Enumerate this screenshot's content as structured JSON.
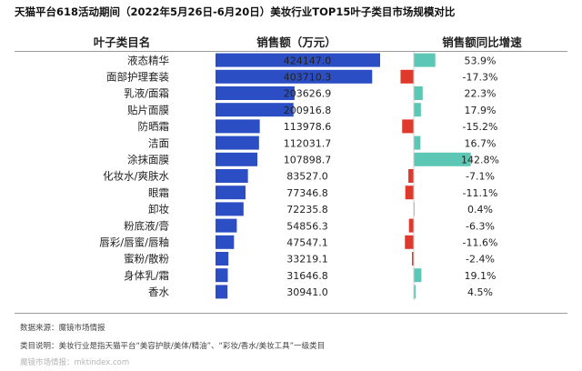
{
  "title": "天猫平台618活动期间（2022年5月26日-6月20日）美妆行业TOP15叶子类目市场规模对比",
  "headers": {
    "category": "叶子类目名",
    "sales": "销售额（万元）",
    "growth": "销售额同比增速"
  },
  "footer": {
    "source": "数据来源：魔镜市场情报",
    "note": "类目说明：美妆行业是指天猫平台“美容护肤/美体/精油”、“彩妆/香水/美妆工具”一级类目",
    "watermark": "魔镜市场情报：mktindex.com"
  },
  "colors": {
    "sales_bar": "#2b4ec4",
    "growth_positive": "#5cc7b4",
    "growth_negative": "#e0392b",
    "rule": "#9a9a9a"
  },
  "chart_data": {
    "type": "bar",
    "categories": [
      "液态精华",
      "面部护理套装",
      "乳液/面霜",
      "贴片面膜",
      "防晒霜",
      "洁面",
      "涂抹面膜",
      "化妆水/爽肤水",
      "眼霜",
      "卸妆",
      "粉底液/膏",
      "唇彩/唇蜜/唇釉",
      "蜜粉/散粉",
      "身体乳/霜",
      "香水"
    ],
    "series": [
      {
        "values": [
          424147.0,
          403710.3,
          203626.9,
          200916.8,
          113978.6,
          112031.7,
          107898.7,
          83527.0,
          77346.8,
          72235.8,
          54856.3,
          47547.1,
          33219.1,
          31646.8,
          30941.0
        ],
        "labels": [
          "424147.0",
          "403710.3",
          "203626.9",
          "200916.8",
          "113978.6",
          "112031.7",
          "107898.7",
          "83527.0",
          "77346.8",
          "72235.8",
          "54856.3",
          "47547.1",
          "33219.1",
          "31646.8",
          "30941.0"
        ]
      },
      {
        "values": [
          53.9,
          -17.3,
          22.3,
          17.9,
          -15.2,
          16.7,
          142.8,
          -7.1,
          -11.1,
          0.4,
          -6.3,
          -11.6,
          -2.4,
          19.1,
          4.5
        ],
        "labels": [
          "53.9%",
          "-17.3%",
          "22.3%",
          "17.9%",
          "-15.2%",
          "16.7%",
          "142.8%",
          "-7.1%",
          "-11.1%",
          "0.4%",
          "-6.3%",
          "-11.6%",
          "-2.4%",
          "19.1%",
          "4.5%"
        ]
      }
    ]
  }
}
